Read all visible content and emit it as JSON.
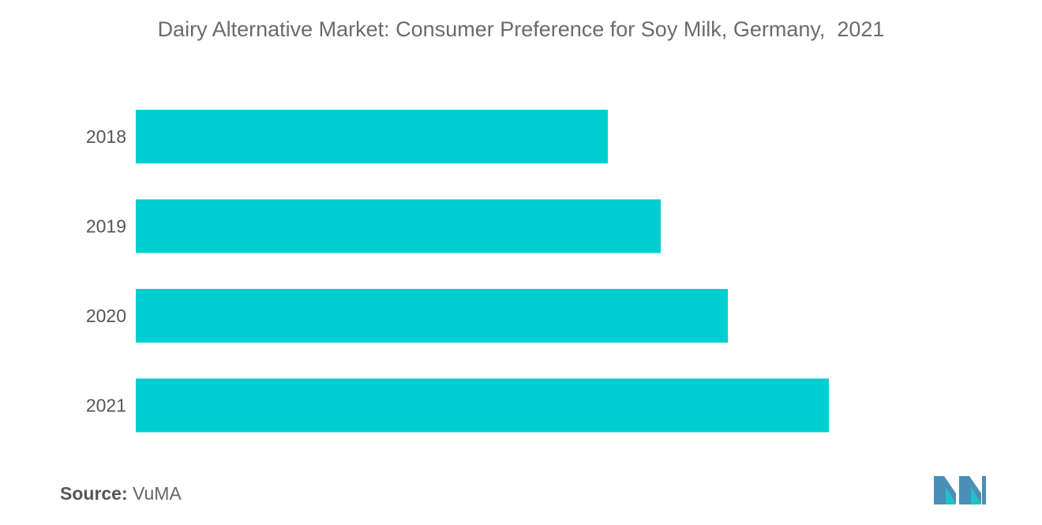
{
  "chart_data": {
    "type": "bar",
    "orientation": "horizontal",
    "title": "Dairy Alternative Market: Consumer Preference for Soy Milk, Germany,  2021",
    "categories": [
      "2018",
      "2019",
      "2020",
      "2021"
    ],
    "values": [
      598,
      665,
      750,
      878
    ],
    "bar_color": "#00CED1",
    "xlim": [
      0,
      1148
    ],
    "grid": false,
    "legend": "none"
  },
  "source": {
    "label": "Source:",
    "value": "VuMA"
  },
  "colors": {
    "bar": "#00CED1",
    "logo": "#4a8fb5",
    "logo_accent": "#19c3c9"
  }
}
